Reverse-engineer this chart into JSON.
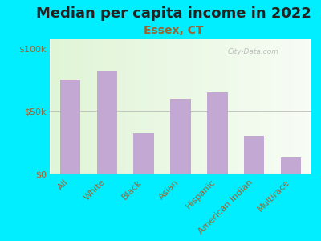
{
  "title": "Median per capita income in 2022",
  "subtitle": "Essex, CT",
  "categories": [
    "All",
    "White",
    "Black",
    "Asian",
    "Hispanic",
    "American Indian",
    "Multirace"
  ],
  "values": [
    75000,
    82000,
    32000,
    60000,
    65000,
    30000,
    13000
  ],
  "bar_color": "#c4a8d4",
  "background_outer": "#00eeff",
  "title_color": "#222222",
  "subtitle_color": "#996633",
  "tick_color": "#996633",
  "ytick_labels": [
    "$0",
    "$50k",
    "$100k"
  ],
  "ytick_values": [
    0,
    50000,
    100000
  ],
  "ylim": [
    0,
    108000
  ],
  "watermark": "City-Data.com",
  "title_fontsize": 13,
  "subtitle_fontsize": 10,
  "tick_fontsize": 8
}
